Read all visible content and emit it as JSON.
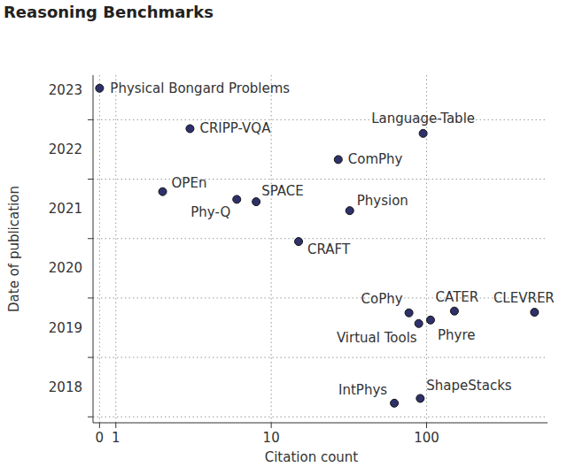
{
  "chart_data": {
    "type": "scatter",
    "title": "Reasoning Benchmarks",
    "x_label": "Citation count",
    "y_label": "Date of publication",
    "labels": [
      "Physical Bongard Problems",
      "CRIPP-VQA",
      "Language-Table",
      "ComPhy",
      "OPEn",
      "Phy-Q",
      "SPACE",
      "Physion",
      "CRAFT",
      "CoPhy",
      "Virtual Tools",
      "Phyre",
      "CATER",
      "CLEVRER",
      "IntPhys",
      "ShapeStacks"
    ],
    "x": [
      0,
      3,
      95,
      27,
      2,
      6,
      8,
      32,
      15,
      77,
      89,
      106,
      151,
      495,
      62,
      91
    ],
    "values": [
      2023.53,
      2022.85,
      2022.77,
      2022.33,
      2021.79,
      2021.66,
      2021.62,
      2021.47,
      2020.95,
      2019.75,
      2019.57,
      2019.63,
      2019.78,
      2019.76,
      2018.23,
      2018.31
    ],
    "color": "#2e3169",
    "marker": "circle",
    "log": "x",
    "grid": true,
    "xlim": [
      -0.4,
      600
    ],
    "ylim": [
      2017.9,
      2023.75
    ],
    "xticks": [
      0,
      1,
      10,
      100
    ],
    "yticks": [
      2018,
      2019,
      2020,
      2021,
      2022,
      2023
    ]
  }
}
